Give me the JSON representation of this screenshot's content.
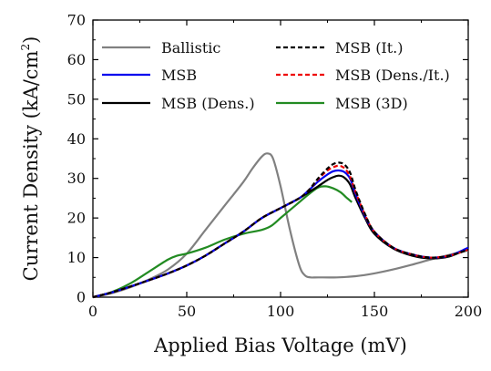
{
  "chart_data": {
    "type": "line",
    "title": "",
    "xlabel": "Applied Bias Voltage (mV)",
    "ylabel": "Current Density (kA/cm",
    "ylabel_sup": "2",
    "ylabel_close": ")",
    "xlim": [
      0,
      200
    ],
    "ylim": [
      0,
      70
    ],
    "xticks": [
      0,
      50,
      100,
      150,
      200
    ],
    "yticks": [
      0,
      10,
      20,
      30,
      40,
      50,
      60,
      70
    ],
    "xtick_labels": [
      "0",
      "50",
      "100",
      "150",
      "200"
    ],
    "ytick_labels": [
      "0",
      "10",
      "20",
      "30",
      "40",
      "50",
      "60",
      "70"
    ],
    "grid": false,
    "legend": "top-left, two columns",
    "series": [
      {
        "name": "Ballistic",
        "color": "#808080",
        "dash": "solid",
        "x": [
          0,
          10,
          20,
          30,
          40,
          50,
          60,
          70,
          80,
          85,
          90,
          93,
          96,
          100,
          105,
          110,
          113,
          116,
          120,
          130,
          140,
          150,
          160,
          170,
          180,
          190,
          200
        ],
        "y": [
          0,
          1,
          2.5,
          4.5,
          7,
          11,
          17,
          23,
          29,
          32.5,
          35.5,
          36.3,
          35,
          28,
          17,
          8,
          5.5,
          5,
          5,
          5,
          5.3,
          6,
          7,
          8.2,
          9.5,
          10.7,
          11.8
        ]
      },
      {
        "name": "MSB (It.)",
        "color": "#000000",
        "dash": "dashed",
        "x": [
          0,
          10,
          20,
          30,
          40,
          50,
          60,
          70,
          80,
          90,
          100,
          110,
          115,
          120,
          125,
          128,
          131,
          134,
          137,
          140,
          145,
          150,
          160,
          170,
          180,
          190,
          200
        ],
        "y": [
          0,
          1.2,
          2.7,
          4.3,
          6,
          8,
          10.5,
          13.5,
          16.5,
          20,
          22.5,
          25,
          27,
          30,
          32.5,
          33.6,
          34,
          33.5,
          31.5,
          27,
          21,
          16.5,
          12.5,
          10.8,
          10,
          10.5,
          12
        ]
      },
      {
        "name": "MSB",
        "color": "#0000ee",
        "dash": "solid",
        "x": [
          0,
          10,
          20,
          30,
          40,
          50,
          60,
          70,
          80,
          90,
          100,
          110,
          115,
          120,
          125,
          128,
          131,
          134,
          137,
          140,
          145,
          150,
          160,
          170,
          180,
          190,
          200
        ],
        "y": [
          0,
          1.2,
          2.7,
          4.3,
          6,
          8,
          10.5,
          13.5,
          16.5,
          20,
          22.5,
          25,
          27,
          29.2,
          31,
          31.8,
          32,
          31.6,
          30,
          26,
          20.5,
          16.5,
          12.5,
          10.8,
          10,
          10.5,
          12.5
        ]
      },
      {
        "name": "MSB (Dens./It.)",
        "color": "#ee0000",
        "dash": "dashed",
        "x": [
          0,
          10,
          20,
          30,
          40,
          50,
          60,
          70,
          80,
          90,
          100,
          110,
          115,
          120,
          125,
          128,
          131,
          134,
          137,
          140,
          145,
          150,
          160,
          170,
          180,
          190,
          200
        ],
        "y": [
          0,
          1.2,
          2.7,
          4.3,
          6,
          8,
          10.5,
          13.5,
          16.5,
          20,
          22.5,
          25,
          27,
          29.8,
          32,
          32.8,
          33.2,
          32.6,
          30.5,
          26.5,
          20.8,
          16.5,
          12.5,
          10.8,
          10,
          10.5,
          12
        ]
      },
      {
        "name": "MSB (Dens.)",
        "color": "#000000",
        "dash": "solid",
        "x": [
          0,
          10,
          20,
          30,
          40,
          50,
          60,
          70,
          80,
          90,
          100,
          110,
          115,
          120,
          125,
          128,
          131,
          134,
          137,
          140,
          145,
          150,
          160,
          170,
          180,
          190,
          200
        ],
        "y": [
          0,
          1.2,
          2.7,
          4.3,
          6,
          8,
          10.5,
          13.5,
          16.5,
          20,
          22.5,
          25,
          26.5,
          28,
          29.6,
          30.3,
          30.7,
          30.2,
          28.5,
          25,
          20,
          16,
          12.3,
          10.5,
          9.8,
          10.3,
          12.3
        ]
      },
      {
        "name": "MSB (3D)",
        "color": "#228b22",
        "dash": "solid",
        "x": [
          0,
          10,
          20,
          30,
          40,
          45,
          50,
          60,
          70,
          80,
          90,
          95,
          100,
          105,
          110,
          115,
          120,
          124,
          128,
          132,
          135,
          138
        ],
        "y": [
          0,
          1.3,
          3.5,
          6.5,
          9.5,
          10.5,
          11,
          12.5,
          14.5,
          16,
          17,
          18,
          20,
          22,
          24,
          26,
          27.7,
          28,
          27.5,
          26.5,
          25.2,
          24
        ]
      }
    ]
  }
}
